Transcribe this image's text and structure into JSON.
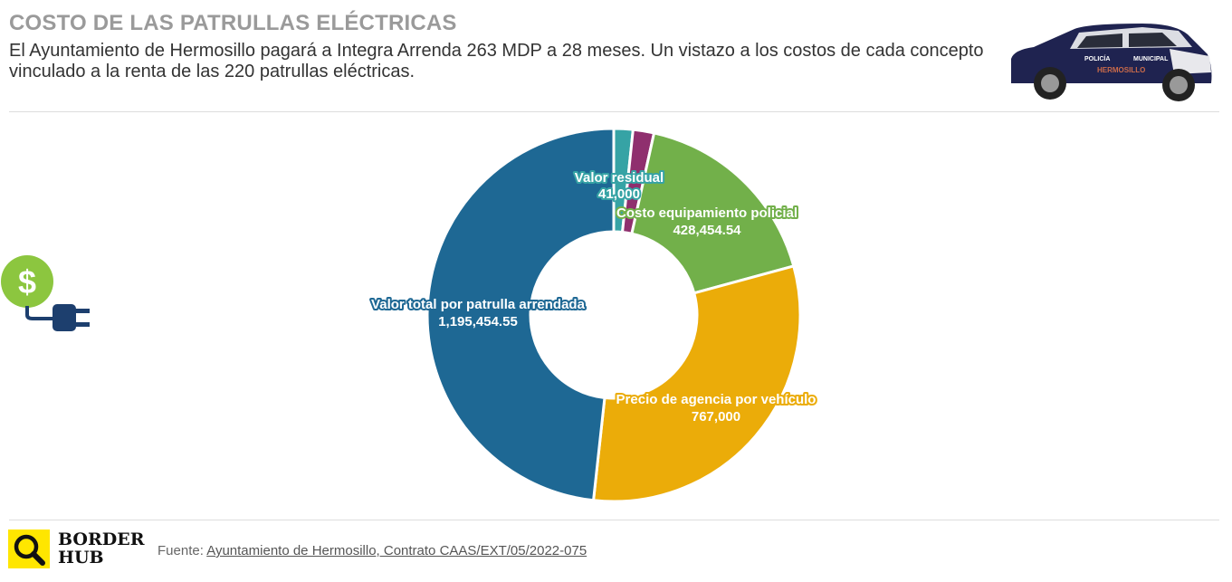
{
  "header": {
    "title": "COSTO DE LAS PATRULLAS ELÉCTRICAS",
    "subtitle": "El Ayuntamiento de Hermosillo pagará a Integra Arrenda 263 MDP a 28 meses. Un vistazo a los costos de cada concepto vinculado a la renta de las 220 patrullas eléctricas."
  },
  "car": {
    "text1": "POLICÍA",
    "text2": "MUNICIPAL",
    "text3": "HERMOSILLO"
  },
  "chart_data": {
    "type": "pie",
    "donut": true,
    "start": "top",
    "direction": "clockwise",
    "slices": [
      {
        "name": "Valor residual",
        "value": 41000,
        "label": "41,000",
        "color": "#36a3a5"
      },
      {
        "name": "",
        "value": 45000,
        "label": "",
        "color": "#8f2f6e"
      },
      {
        "name": "Costo equipamiento policial",
        "value": 428454.54,
        "label": "428,454.54",
        "color": "#72b04a"
      },
      {
        "name": "Precio de agencia por vehículo",
        "value": 767000,
        "label": "767,000",
        "color": "#ebac09"
      },
      {
        "name": "Valor total por patrulla arrendada",
        "value": 1195454.55,
        "label": "1,195,454.55",
        "color": "#1e6894"
      }
    ]
  },
  "footer": {
    "brand1": "BORDER",
    "brand2": "HUB",
    "source_prefix": "Fuente: ",
    "source_link": "Ayuntamiento de Hermosillo, Contrato CAAS/EXT/05/2022-075"
  }
}
